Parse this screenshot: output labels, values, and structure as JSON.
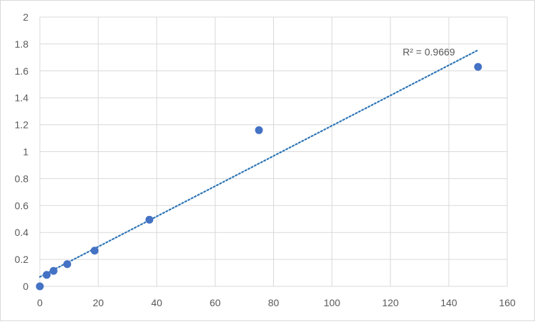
{
  "chart_data": {
    "type": "scatter",
    "title": "",
    "xlabel": "",
    "ylabel": "",
    "xlim": [
      0,
      160
    ],
    "ylim": [
      0,
      2
    ],
    "x_ticks": [
      0,
      20,
      40,
      60,
      80,
      100,
      120,
      140,
      160
    ],
    "y_ticks": [
      0,
      0.2,
      0.4,
      0.6,
      0.8,
      1,
      1.2,
      1.4,
      1.6,
      1.8,
      2
    ],
    "x_tick_labels": [
      "0",
      "20",
      "40",
      "60",
      "80",
      "100",
      "120",
      "140",
      "160"
    ],
    "y_tick_labels": [
      "0",
      "0.2",
      "0.4",
      "0.6",
      "0.8",
      "1",
      "1.2",
      "1.4",
      "1.6",
      "1.8",
      "2"
    ],
    "grid": true,
    "legend": "none",
    "series": [
      {
        "points": [
          {
            "x": 0,
            "y": 0.0
          },
          {
            "x": 2.34,
            "y": 0.085
          },
          {
            "x": 4.69,
            "y": 0.115
          },
          {
            "x": 9.38,
            "y": 0.165
          },
          {
            "x": 18.75,
            "y": 0.265
          },
          {
            "x": 37.5,
            "y": 0.495
          },
          {
            "x": 75,
            "y": 1.16
          },
          {
            "x": 150,
            "y": 1.63
          }
        ],
        "color": "#4472c4"
      }
    ],
    "trendline": {
      "type": "linear",
      "slope": 0.01123,
      "intercept": 0.07,
      "x_range": [
        0,
        150
      ],
      "color": "#2e75b6",
      "style": "dotted",
      "r2_label": "R² = 0.9669"
    }
  }
}
